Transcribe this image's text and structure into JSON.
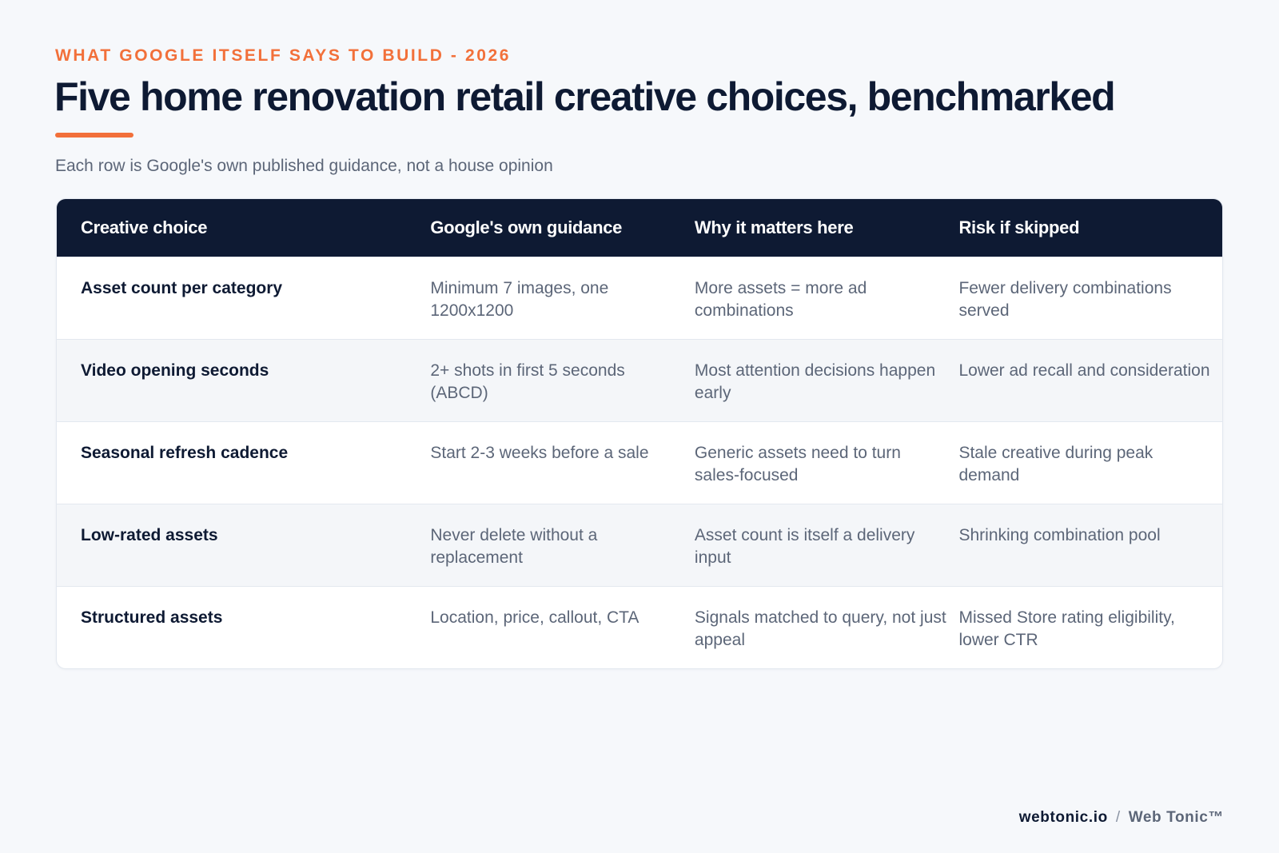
{
  "eyebrow": "WHAT GOOGLE ITSELF SAYS TO BUILD - 2026",
  "title": "Five home renovation retail creative choices, benchmarked",
  "subtitle": "Each row is Google's own published guidance, not a house opinion",
  "table": {
    "headers": [
      "Creative choice",
      "Google's own guidance",
      "Why it matters here",
      "Risk if skipped"
    ],
    "rows": [
      {
        "choice": "Asset count per category",
        "guidance": "Minimum 7 images, one 1200x1200",
        "why": "More assets = more ad combinations",
        "risk": "Fewer delivery combinations served"
      },
      {
        "choice": "Video opening seconds",
        "guidance": "2+ shots in first 5 seconds (ABCD)",
        "why": "Most attention decisions happen early",
        "risk": "Lower ad recall and consideration"
      },
      {
        "choice": "Seasonal refresh cadence",
        "guidance": "Start 2-3 weeks before a sale",
        "why": "Generic assets need to turn sales-focused",
        "risk": "Stale creative during peak demand"
      },
      {
        "choice": "Low-rated assets",
        "guidance": "Never delete without a replacement",
        "why": "Asset count is itself a delivery input",
        "risk": "Shrinking combination pool"
      },
      {
        "choice": "Structured assets",
        "guidance": "Location, price, callout, CTA",
        "why": "Signals matched to query, not just appeal",
        "risk": "Missed Store rating eligibility, lower CTR"
      }
    ]
  },
  "footer": {
    "domain": "webtonic.io",
    "separator": "/",
    "brand": "Web Tonic™"
  },
  "colors": {
    "accent": "#f2703a",
    "navy": "#0e1a33",
    "muted": "#5c6678",
    "background": "#f6f8fb"
  }
}
